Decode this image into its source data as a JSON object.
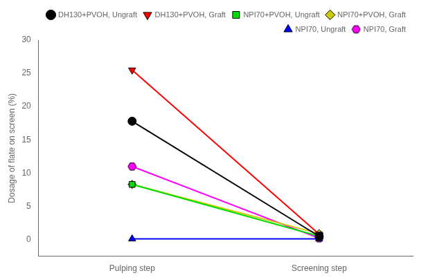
{
  "chart_data": {
    "type": "line",
    "categories": [
      "Pulping step",
      "Screening step"
    ],
    "series": [
      {
        "name": "DH130+PVOH, Ungraft",
        "color": "black",
        "marker": "circle",
        "line_style": "solid",
        "values": [
          17.8,
          0.5
        ]
      },
      {
        "name": "DH130+PVOH, Graft",
        "color": "red",
        "marker": "triangle_down",
        "line_style": "solid",
        "values": [
          25.5,
          0.8
        ]
      },
      {
        "name": "NPI70+PVOH, Ungraft",
        "color": "#00dd00",
        "marker": "square",
        "line_style": "solid",
        "values": [
          8.3,
          0.5
        ]
      },
      {
        "name": "NPI70+PVOH, Graft",
        "color": "#cccc00",
        "marker": "diamond",
        "line_style": "solid",
        "values": [
          8.3,
          0.9
        ]
      },
      {
        "name": "NPI70, Ungraft",
        "color": "blue",
        "marker": "triangle",
        "line_style": "solid",
        "values": [
          0.1,
          0.1
        ]
      },
      {
        "name": "NPI70, Graft",
        "color": "magenta",
        "marker": "hexagon",
        "line_style": "solid",
        "values": [
          11.0,
          0.2
        ]
      }
    ],
    "y_label": "Dosage of flate on screen (%)",
    "ylim": [
      -2.5,
      30
    ],
    "yticks": [
      0,
      5,
      10,
      15,
      20,
      25,
      30
    ],
    "grid": false,
    "legend": "upper right"
  }
}
